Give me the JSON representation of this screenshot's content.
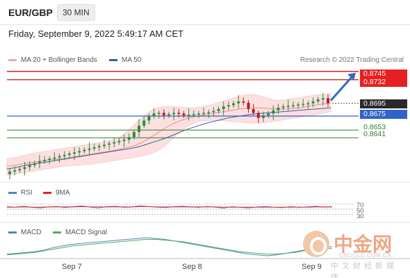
{
  "header": {
    "pair": "EUR/GBP",
    "interval": "30 MIN"
  },
  "date_text": "Friday, September 9, 2022 5:49:17 AM CET",
  "legend_main": [
    {
      "label": "MA 20 + Bollinger Bands",
      "color": "#f4a7a7"
    },
    {
      "label": "MA 50",
      "color": "#3a5b9c"
    }
  ],
  "research": "Research © 2022 Trading Central",
  "legend_rsi": [
    {
      "label": "RSI",
      "color": "#5b7fc7"
    },
    {
      "label": "9MA",
      "color": "#e62020"
    }
  ],
  "legend_macd": [
    {
      "label": "MACD",
      "color": "#5b7fc7"
    },
    {
      "label": "MACD Signal",
      "color": "#4caf50"
    }
  ],
  "price_levels": [
    {
      "label": "0.8745",
      "value": 0.8745,
      "style": "red"
    },
    {
      "label": "0.8732",
      "value": 0.8732,
      "style": "red"
    },
    {
      "label": "0.8695",
      "value": 0.8695,
      "style": "dark"
    },
    {
      "label": "0.8675",
      "value": 0.8675,
      "style": "blue"
    },
    {
      "label": "0.8653",
      "value": 0.8653,
      "style": "green"
    },
    {
      "label": "0.8641",
      "value": 0.8641,
      "style": "green"
    }
  ],
  "rsi_levels": [
    "70",
    "50",
    "30"
  ],
  "x_ticks": [
    "Sep 7",
    "Sep 8",
    "Sep 9"
  ],
  "watermark": {
    "cn": "中金网",
    "en": "CNGOLD.COM.CN",
    "sub": "中文财经新媒体"
  },
  "colors": {
    "resistance": "#e62020",
    "pivot": "#2f63c9",
    "support": "#2e7d32",
    "bull": "#2e8b3e",
    "bear": "#b22222",
    "band": "#fbdada",
    "arrow": "#2e6dbf"
  },
  "chart_data": {
    "type": "candlestick",
    "title": "EUR/GBP 30 MIN",
    "x_labels": [
      "Sep 7",
      "Sep 8",
      "Sep 9"
    ],
    "ylim": [
      0.8578,
      0.8748
    ],
    "close": [
      0.8588,
      0.859,
      0.8592,
      0.8595,
      0.8598,
      0.8601,
      0.8604,
      0.8606,
      0.8608,
      0.861,
      0.8612,
      0.8614,
      0.8616,
      0.8618,
      0.862,
      0.8622,
      0.8624,
      0.8626,
      0.8628,
      0.863,
      0.8632,
      0.8634,
      0.8636,
      0.8638,
      0.8642,
      0.865,
      0.866,
      0.8668,
      0.8675,
      0.8679,
      0.868,
      0.8676,
      0.8678,
      0.868,
      0.8679,
      0.8676,
      0.8677,
      0.8678,
      0.8679,
      0.868,
      0.8681,
      0.8683,
      0.8686,
      0.869,
      0.8692,
      0.8695,
      0.8698,
      0.8696,
      0.8686,
      0.868,
      0.8672,
      0.8676,
      0.8679,
      0.8684,
      0.8688,
      0.869,
      0.8691,
      0.8692,
      0.8693,
      0.8694,
      0.8695,
      0.8698,
      0.8701,
      0.8703,
      0.8695
    ],
    "bands": {
      "ma20": [
        0.8596,
        0.8598,
        0.86,
        0.8602,
        0.8604,
        0.8606,
        0.8607,
        0.8608,
        0.861,
        0.8612,
        0.8614,
        0.8616,
        0.8618,
        0.862,
        0.8622,
        0.8625,
        0.8628,
        0.8633,
        0.864,
        0.8648,
        0.8656,
        0.8663,
        0.8668,
        0.8672,
        0.8675,
        0.8677,
        0.8679,
        0.8681,
        0.8683,
        0.8685,
        0.8687,
        0.8688,
        0.8688,
        0.8687,
        0.8686,
        0.8686,
        0.8687,
        0.8688,
        0.869,
        0.8692,
        0.8694,
        0.8696
      ],
      "upper": [
        0.8608,
        0.861,
        0.8613,
        0.8616,
        0.8618,
        0.862,
        0.8622,
        0.8624,
        0.8626,
        0.8628,
        0.863,
        0.8632,
        0.8634,
        0.8636,
        0.864,
        0.8648,
        0.866,
        0.8672,
        0.8682,
        0.8688,
        0.869,
        0.869,
        0.8689,
        0.8688,
        0.8688,
        0.869,
        0.8693,
        0.8697,
        0.8701,
        0.8705,
        0.8708,
        0.8709,
        0.8707,
        0.8703,
        0.87,
        0.87,
        0.8702,
        0.8704,
        0.8706,
        0.8708,
        0.8709,
        0.871
      ],
      "lower": [
        0.8582,
        0.8584,
        0.8586,
        0.8588,
        0.859,
        0.8592,
        0.8594,
        0.8596,
        0.8597,
        0.8598,
        0.8599,
        0.86,
        0.8602,
        0.8604,
        0.8606,
        0.8608,
        0.861,
        0.8612,
        0.8615,
        0.862,
        0.8628,
        0.864,
        0.8651,
        0.866,
        0.8666,
        0.8668,
        0.8668,
        0.8668,
        0.8667,
        0.8666,
        0.8665,
        0.8664,
        0.8664,
        0.8665,
        0.8667,
        0.8669,
        0.8671,
        0.8673,
        0.8675,
        0.8677,
        0.8679,
        0.8682
      ]
    },
    "ma50": [
      0.8592,
      0.8594,
      0.8597,
      0.8599,
      0.8601,
      0.8603,
      0.8605,
      0.8607,
      0.8609,
      0.8611,
      0.8613,
      0.8615,
      0.8617,
      0.8619,
      0.8621,
      0.8623,
      0.8625,
      0.8628,
      0.8632,
      0.8636,
      0.864,
      0.8645,
      0.865,
      0.8655,
      0.8659,
      0.8663,
      0.8666,
      0.8669,
      0.8672,
      0.8674,
      0.8676,
      0.8678,
      0.8679,
      0.868,
      0.8681,
      0.8682,
      0.8683,
      0.8684,
      0.8685,
      0.8686,
      0.8687,
      0.8688
    ],
    "levels": [
      0.8745,
      0.8732,
      0.8695,
      0.8675,
      0.8653,
      0.8641
    ],
    "rsi": {
      "ylim": [
        20,
        80
      ],
      "rsi": [
        60,
        58,
        62,
        57,
        55,
        59,
        61,
        56,
        60,
        63,
        58,
        55,
        60,
        62,
        57,
        59,
        64,
        60,
        58,
        56,
        60,
        62,
        59,
        57,
        61,
        58,
        54,
        60,
        57,
        55,
        59,
        61,
        58,
        56,
        60,
        57,
        59,
        62,
        58,
        60
      ],
      "ma9": [
        58,
        58,
        59,
        58,
        58,
        59,
        59,
        59,
        59,
        60,
        59,
        59,
        59,
        59,
        59,
        59,
        60,
        60,
        59,
        59,
        59,
        59,
        59,
        59,
        59,
        59,
        58,
        58,
        58,
        58,
        58,
        58,
        58,
        58,
        58,
        58,
        58,
        59,
        59,
        59
      ]
    },
    "macd": {
      "macd": [
        -2,
        -1,
        0,
        1,
        3,
        6,
        8,
        10,
        11,
        12,
        13,
        14,
        15,
        16,
        17,
        18,
        17,
        16,
        14,
        12,
        10,
        8,
        6,
        4,
        2,
        0,
        -2,
        -3,
        -4,
        -3,
        -1,
        1,
        3,
        5,
        6,
        7
      ],
      "signal": [
        -3,
        -2,
        -1,
        0,
        2,
        4,
        6,
        8,
        9,
        10,
        11,
        12,
        13,
        14,
        15,
        16,
        16,
        15,
        14,
        13,
        11,
        9,
        7,
        5,
        3,
        1,
        0,
        -1,
        -2,
        -2,
        -1,
        0,
        2,
        3,
        4,
        5
      ]
    },
    "forecast": {
      "from": 0.8695,
      "to": 0.8745
    }
  }
}
